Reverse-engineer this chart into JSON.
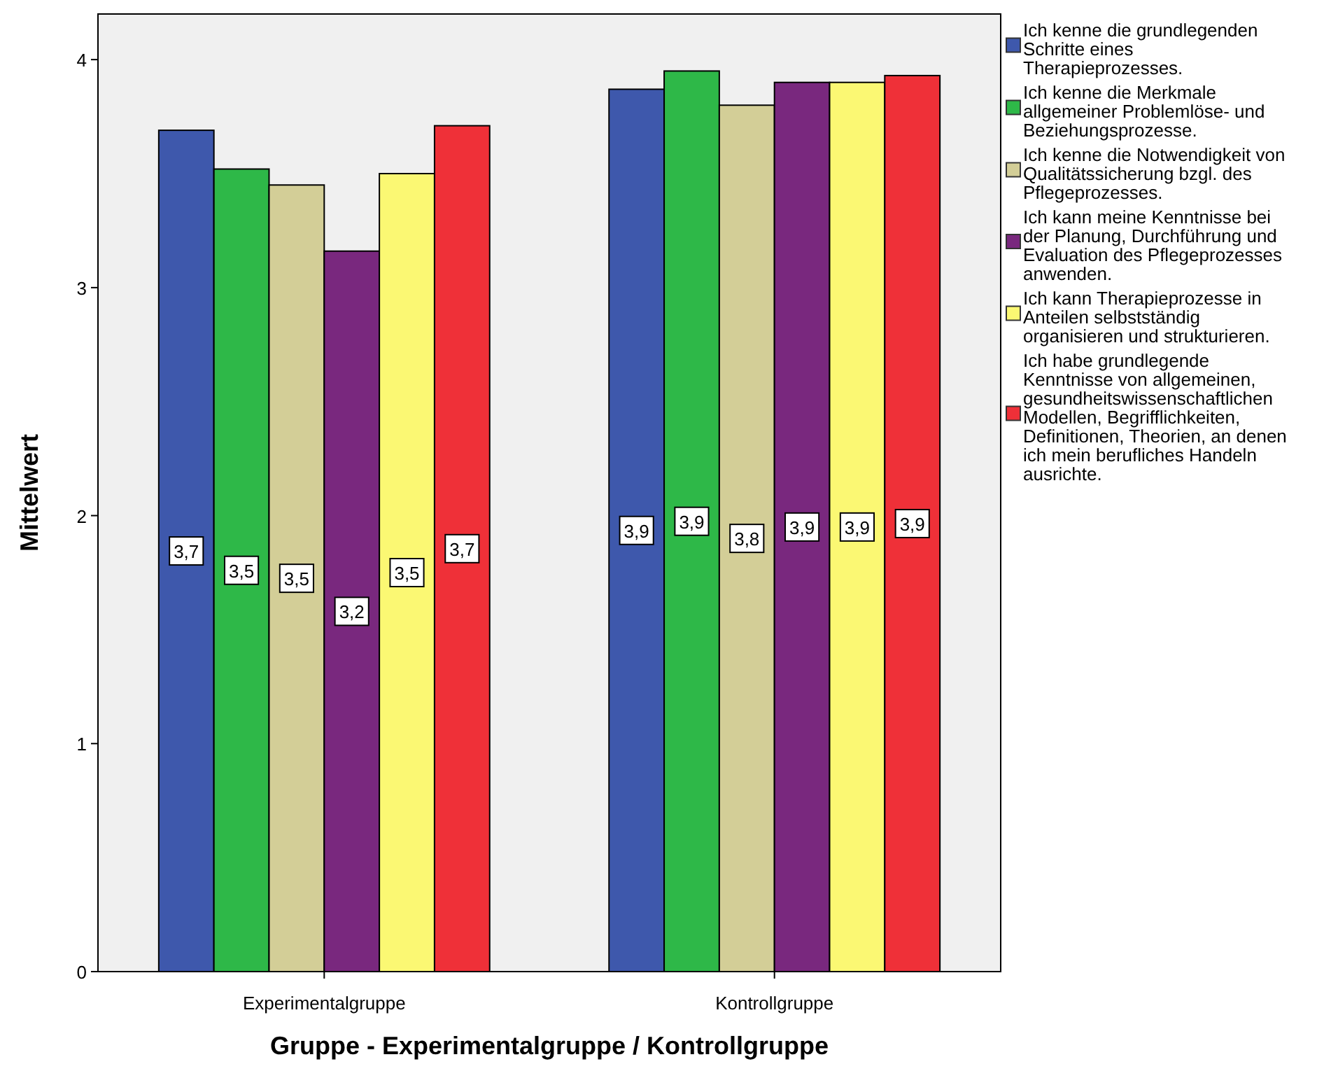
{
  "chart_data": {
    "type": "bar",
    "xlabel": "Gruppe - Experimentalgruppe / Kontrollgruppe",
    "ylabel": "Mittelwert",
    "categories": [
      "Experimentalgruppe",
      "Kontrollgruppe"
    ],
    "series": [
      {
        "name": "Ich kenne die grundlegenden Schritte eines Therapieprozesses.",
        "color": "#3e58ac",
        "values": [
          3.69,
          3.87
        ],
        "value_labels": [
          "3,7",
          "3,9"
        ]
      },
      {
        "name": "Ich kenne die Merkmale allgemeiner Problemlöse- und Beziehungsprozesse.",
        "color": "#2eb848",
        "values": [
          3.52,
          3.95
        ],
        "value_labels": [
          "3,5",
          "3,9"
        ]
      },
      {
        "name": "Ich kenne die Notwendigkeit von Qualitätssicherung bzgl. des Pflegeprozesses.",
        "color": "#d3ce97",
        "values": [
          3.45,
          3.8
        ],
        "value_labels": [
          "3,5",
          "3,8"
        ]
      },
      {
        "name": "Ich kann meine Kenntnisse bei der Planung, Durchführung und Evaluation des Pflegeprozesses anwenden.",
        "color": "#79287e",
        "values": [
          3.16,
          3.9
        ],
        "value_labels": [
          "3,2",
          "3,9"
        ]
      },
      {
        "name": "Ich kann Therapieprozesse in Anteilen selbstständig organisieren und strukturieren.",
        "color": "#fbf873",
        "values": [
          3.5,
          3.9
        ],
        "value_labels": [
          "3,5",
          "3,9"
        ]
      },
      {
        "name": "Ich habe grundlegende Kenntnisse von allgemeinen, gesundheitswissenschaftlichen Modellen, Begrifflichkeiten, Definitionen, Theorien, an denen ich mein berufliches Handeln ausrichte.",
        "color": "#ef3038",
        "values": [
          3.71,
          3.93
        ],
        "value_labels": [
          "3,7",
          "3,9"
        ]
      }
    ],
    "ylim": [
      0,
      4.2
    ],
    "yticks": [
      0,
      1,
      2,
      3,
      4
    ],
    "grid": false,
    "legend": "right"
  }
}
